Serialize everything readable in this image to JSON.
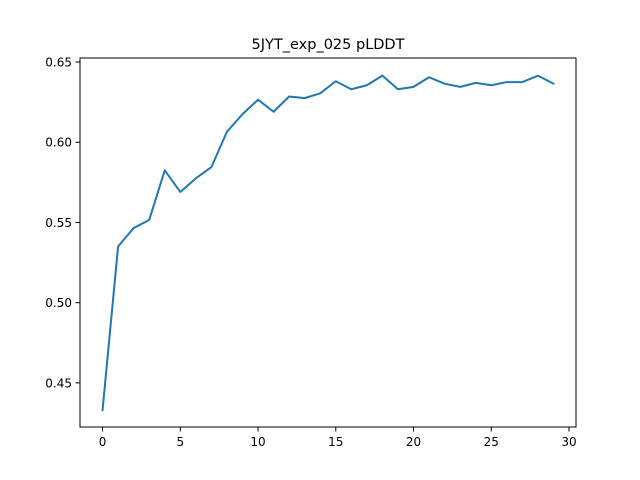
{
  "chart_data": {
    "type": "line",
    "title": "5JYT_exp_025 pLDDT",
    "xlabel": "",
    "ylabel": "",
    "xlim": [
      -1.45,
      30.45
    ],
    "ylim": [
      0.4225,
      0.6525
    ],
    "xticks": [
      0,
      5,
      10,
      15,
      20,
      25,
      30
    ],
    "xtick_labels": [
      "0",
      "5",
      "10",
      "15",
      "20",
      "25",
      "30"
    ],
    "yticks": [
      0.45,
      0.5,
      0.55,
      0.6,
      0.65
    ],
    "ytick_labels": [
      "0.45",
      "0.50",
      "0.55",
      "0.60",
      "0.65"
    ],
    "grid": false,
    "legend": "none",
    "series": [
      {
        "color": "#1f77b4",
        "x": [
          0,
          1,
          2,
          3,
          4,
          5,
          6,
          7,
          8,
          9,
          10,
          11,
          12,
          13,
          14,
          15,
          16,
          17,
          18,
          19,
          20,
          21,
          22,
          23,
          24,
          25,
          26,
          27,
          28,
          29
        ],
        "y": [
          0.433,
          0.535,
          0.5465,
          0.5515,
          0.5825,
          0.569,
          0.5775,
          0.5845,
          0.6065,
          0.6175,
          0.6265,
          0.619,
          0.6285,
          0.6275,
          0.6305,
          0.638,
          0.633,
          0.6355,
          0.6415,
          0.633,
          0.6345,
          0.6405,
          0.6365,
          0.6345,
          0.637,
          0.6355,
          0.6375,
          0.6375,
          0.6415,
          0.6365
        ]
      }
    ]
  }
}
